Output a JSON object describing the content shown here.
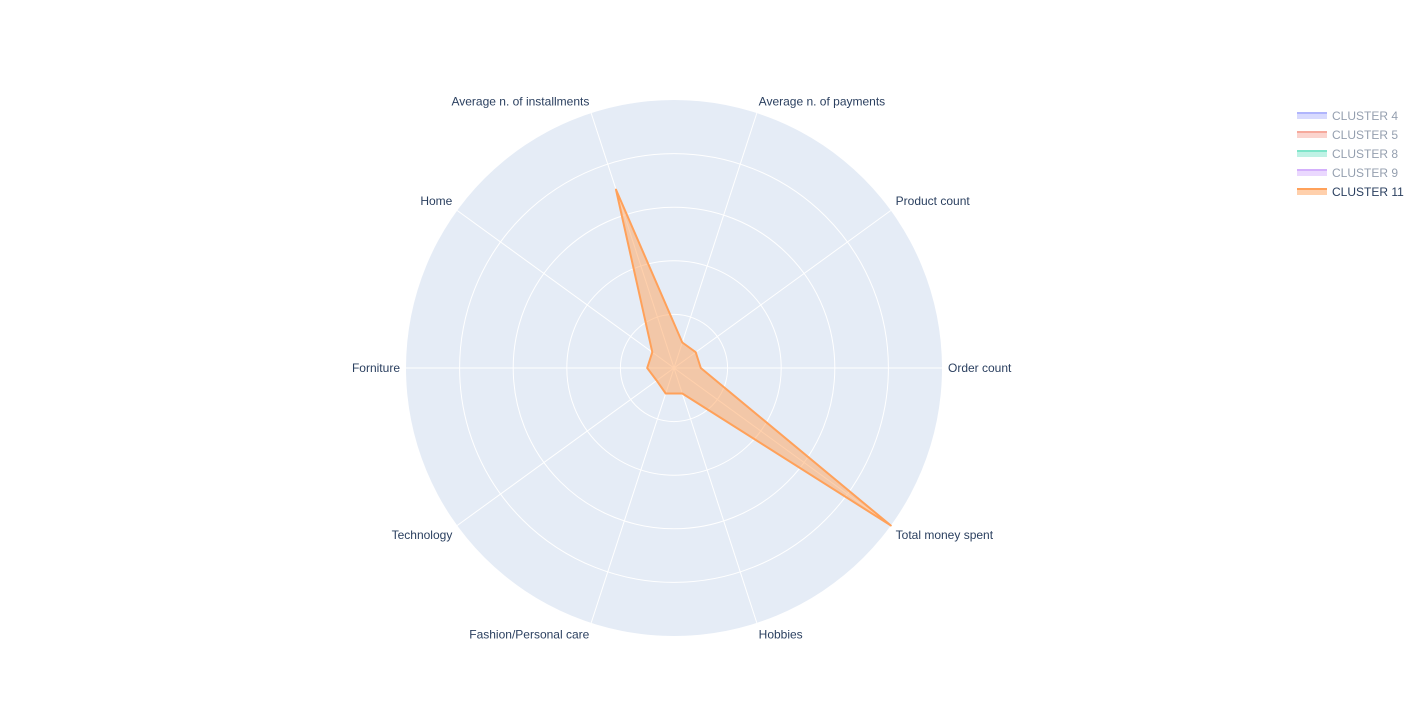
{
  "chart_data": {
    "type": "radar",
    "title": "",
    "axes": [
      "Order count",
      "Total money spent",
      "Hobbies",
      "Fashion/Personal care",
      "Technology",
      "Forniture",
      "Home",
      "Average n. of installments",
      "Average n. of payments",
      "Product count"
    ],
    "radial_range": [
      0,
      1
    ],
    "gridlines": [
      0.2,
      0.4,
      0.6,
      0.8,
      1.0
    ],
    "grid": true,
    "legend_position": "top-right",
    "series": [
      {
        "name": "CLUSTER 4",
        "color": "#636efa",
        "visible": false,
        "values": []
      },
      {
        "name": "CLUSTER 5",
        "color": "#ef553b",
        "visible": false,
        "values": []
      },
      {
        "name": "CLUSTER 8",
        "color": "#00cc96",
        "visible": false,
        "values": []
      },
      {
        "name": "CLUSTER 9",
        "color": "#ab63fa",
        "visible": false,
        "values": []
      },
      {
        "name": "CLUSTER 11",
        "color": "#ffa15a",
        "visible": true,
        "values": [
          0.1,
          1.0,
          0.1,
          0.1,
          0.08,
          0.1,
          0.1,
          0.7,
          0.1,
          0.1
        ]
      }
    ]
  }
}
